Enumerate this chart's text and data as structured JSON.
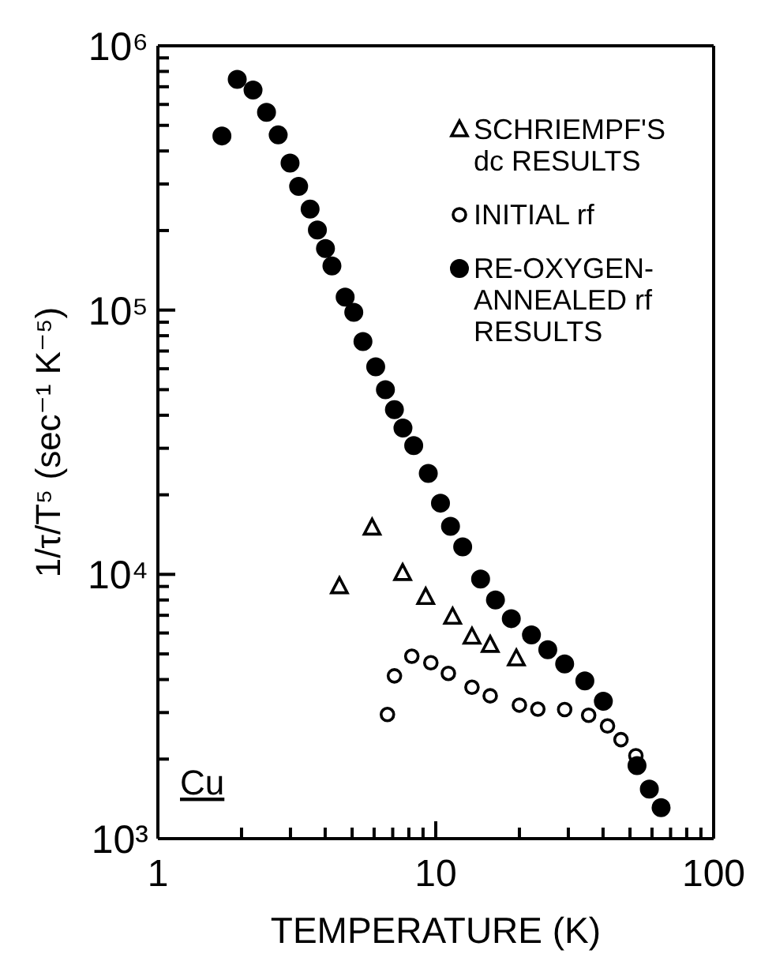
{
  "chart_data": {
    "type": "scatter",
    "xlabel": "TEMPERATURE (K)",
    "ylabel": "1/τ/T⁵ (sec⁻¹ K⁻⁵)",
    "annotations": [
      "Cu"
    ],
    "log": "xy",
    "grid": false,
    "legend": "top right",
    "xlim": [
      1,
      100
    ],
    "xticks": [
      1,
      {
        "value": 2,
        "label": null
      },
      {
        "value": 3,
        "label": null
      },
      {
        "value": 4,
        "label": null
      },
      {
        "value": 5,
        "label": null
      },
      {
        "value": 6,
        "label": null
      },
      {
        "value": 7,
        "label": null
      },
      {
        "value": 8,
        "label": null
      },
      {
        "value": 9,
        "label": null
      },
      10,
      {
        "value": 20,
        "label": null
      },
      {
        "value": 30,
        "label": null
      },
      {
        "value": 40,
        "label": null
      },
      {
        "value": 50,
        "label": null
      },
      {
        "value": 60,
        "label": null
      },
      {
        "value": 70,
        "label": null
      },
      {
        "value": 80,
        "label": null
      },
      {
        "value": 90,
        "label": null
      },
      100
    ],
    "ylim": [
      1000,
      1000000
    ],
    "yticks": [
      {
        "value": 1000,
        "label": "10³"
      },
      {
        "value": 2000,
        "label": null
      },
      {
        "value": 3000,
        "label": null
      },
      {
        "value": 4000,
        "label": null
      },
      {
        "value": 5000,
        "label": null
      },
      {
        "value": 6000,
        "label": null
      },
      {
        "value": 7000,
        "label": null
      },
      {
        "value": 8000,
        "label": null
      },
      {
        "value": 9000,
        "label": null
      },
      {
        "value": 10000,
        "label": "10⁴"
      },
      {
        "value": 20000,
        "label": null
      },
      {
        "value": 30000,
        "label": null
      },
      {
        "value": 40000,
        "label": null
      },
      {
        "value": 50000,
        "label": null
      },
      {
        "value": 60000,
        "label": null
      },
      {
        "value": 70000,
        "label": null
      },
      {
        "value": 80000,
        "label": null
      },
      {
        "value": 90000,
        "label": null
      },
      {
        "value": 100000,
        "label": "10⁵"
      },
      {
        "value": 200000,
        "label": null
      },
      {
        "value": 300000,
        "label": null
      },
      {
        "value": 400000,
        "label": null
      },
      {
        "value": 500000,
        "label": null
      },
      {
        "value": 600000,
        "label": null
      },
      {
        "value": 700000,
        "label": null
      },
      {
        "value": 800000,
        "label": null
      },
      {
        "value": 900000,
        "label": null
      },
      {
        "value": 1000000,
        "label": "10⁶"
      }
    ],
    "series": [
      {
        "name": "SCHRIEMPF'S dc RESULTS",
        "color": "#000000",
        "marker": "triangle",
        "x": [
          4.5,
          5.9,
          7.6,
          9.2,
          11.5,
          13.5,
          15.7,
          19.5
        ],
        "values": [
          9000,
          15000,
          10100,
          8200,
          6900,
          5800,
          5400,
          4800
        ]
      },
      {
        "name": "INITIAL rf",
        "color": "#000000",
        "marker": "circle-open",
        "x": [
          6.7,
          7.1,
          8.2,
          9.6,
          11.1,
          13.5,
          15.7,
          20,
          23.3,
          29.1,
          35.5,
          41.5,
          46.4,
          52.5
        ],
        "values": [
          2950,
          4130,
          4900,
          4630,
          4220,
          3740,
          3470,
          3200,
          3090,
          3080,
          2930,
          2670,
          2370,
          2060
        ]
      },
      {
        "name": "RE-OXYGEN-ANNEALED rf RESULTS",
        "color": "#000000",
        "marker": "circle",
        "x": [
          1.7,
          1.93,
          2.2,
          2.46,
          2.71,
          2.99,
          3.21,
          3.53,
          3.75,
          4.01,
          4.23,
          4.72,
          5.07,
          5.47,
          6.08,
          6.59,
          7.1,
          7.62,
          8.33,
          9.4,
          10.4,
          11.3,
          12.5,
          14.5,
          16.4,
          18.7,
          22.1,
          25.3,
          29.1,
          34.4,
          40.1,
          53,
          58.7,
          64.7
        ],
        "values": [
          456000,
          746000,
          680000,
          560000,
          460000,
          360000,
          294000,
          241000,
          201000,
          171000,
          147000,
          112000,
          98000,
          76000,
          61000,
          50000,
          42000,
          35800,
          30700,
          24100,
          18600,
          15200,
          12700,
          9600,
          8000,
          6800,
          5900,
          5190,
          4580,
          3950,
          3310,
          1890,
          1540,
          1310
        ]
      }
    ]
  }
}
